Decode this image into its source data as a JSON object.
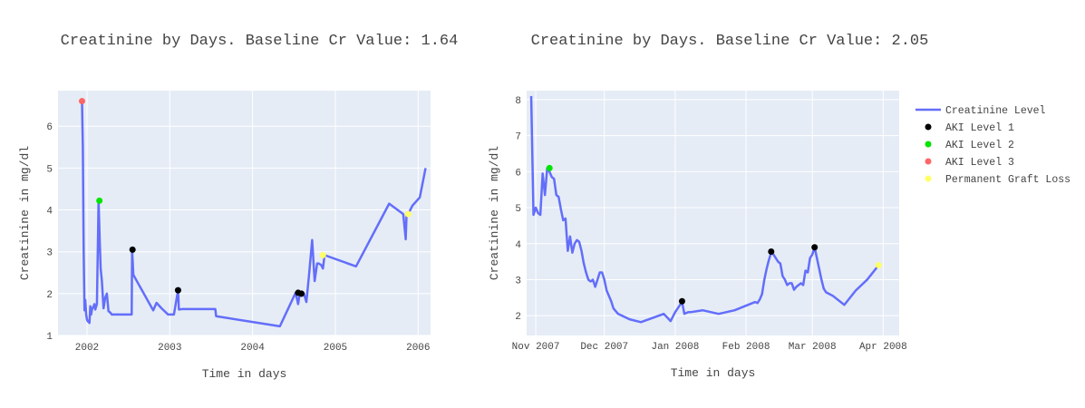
{
  "colors": {
    "plot_bg": "#E5ECF6",
    "grid": "#FFFFFF",
    "line": "#636EFA",
    "aki1": "#000000",
    "aki2": "#00E400",
    "aki3": "#FF6666",
    "loss": "#FFFF66"
  },
  "legend": {
    "position": "right",
    "entries": [
      {
        "label": "Creatinine Level",
        "kind": "line",
        "color": "#636EFA"
      },
      {
        "label": "AKI Level 1",
        "kind": "marker",
        "color": "#000000"
      },
      {
        "label": "AKI Level 2",
        "kind": "marker",
        "color": "#00E400"
      },
      {
        "label": "AKI Level 3",
        "kind": "marker",
        "color": "#FF6666"
      },
      {
        "label": "Permanent Graft Loss",
        "kind": "marker",
        "color": "#FFFF66"
      }
    ]
  },
  "chart_data": [
    {
      "type": "line",
      "title": "Creatinine by Days. Baseline Cr Value: 1.64",
      "xlabel": "Time in days",
      "ylabel": "Creatinine in mg/dl",
      "grid": true,
      "xlim": [
        2001.65,
        2006.15
      ],
      "ylim": [
        1.0,
        6.85
      ],
      "xticks": [
        2002,
        2003,
        2004,
        2005,
        2006
      ],
      "xticklabels": [
        "2002",
        "2003",
        "2004",
        "2005",
        "2006"
      ],
      "yticks": [
        1,
        2,
        3,
        4,
        5,
        6
      ],
      "yticklabels": [
        "1",
        "2",
        "3",
        "4",
        "5",
        "6"
      ],
      "series": [
        {
          "name": "Creatinine Level",
          "x": [
            1.94,
            1.95,
            1.96,
            1.97,
            1.98,
            1.99,
            2.0,
            2.01,
            2.03,
            2.04,
            2.05,
            2.06,
            2.08,
            2.09,
            2.1,
            2.12,
            2.14,
            2.155,
            2.165,
            2.18,
            2.2,
            2.22,
            2.24,
            2.26,
            2.28,
            2.3,
            2.5,
            2.54,
            2.545,
            2.56,
            2.8,
            2.84,
            2.9,
            2.98,
            3.05,
            3.1,
            3.11,
            3.15,
            3.55,
            3.56,
            4.33,
            4.52,
            4.55,
            4.57,
            4.59,
            4.62,
            4.65,
            4.68,
            4.72,
            4.75,
            4.78,
            4.8,
            4.83,
            4.85,
            4.87,
            5.25,
            5.65,
            5.82,
            5.85,
            5.86,
            5.88,
            5.93,
            6.02,
            6.09
          ],
          "y": [
            6.6,
            5.5,
            3.0,
            1.6,
            1.85,
            1.5,
            1.38,
            1.34,
            1.3,
            1.7,
            1.5,
            1.62,
            1.7,
            1.75,
            1.62,
            1.75,
            4.22,
            3.2,
            2.6,
            2.3,
            1.65,
            1.9,
            2.0,
            1.58,
            1.55,
            1.5,
            1.5,
            1.5,
            3.05,
            2.45,
            1.6,
            1.78,
            1.65,
            1.5,
            1.5,
            2.08,
            1.62,
            1.63,
            1.63,
            1.46,
            1.22,
            2.02,
            1.75,
            2.0,
            1.95,
            2.0,
            1.8,
            2.4,
            3.28,
            2.3,
            2.72,
            2.72,
            2.68,
            2.6,
            2.92,
            2.65,
            4.15,
            3.9,
            3.3,
            3.88,
            3.9,
            4.1,
            4.3,
            5.0
          ]
        }
      ],
      "markers": [
        {
          "x": 1.94,
          "y": 6.6,
          "level": "AKI Level 3"
        },
        {
          "x": 2.15,
          "y": 4.22,
          "level": "AKI Level 2"
        },
        {
          "x": 2.55,
          "y": 3.05,
          "level": "AKI Level 1"
        },
        {
          "x": 3.1,
          "y": 2.08,
          "level": "AKI Level 1"
        },
        {
          "x": 4.55,
          "y": 2.02,
          "level": "AKI Level 1"
        },
        {
          "x": 4.59,
          "y": 2.0,
          "level": "AKI Level 1"
        },
        {
          "x": 4.85,
          "y": 2.92,
          "level": "Permanent Graft Loss"
        },
        {
          "x": 5.88,
          "y": 3.9,
          "level": "Permanent Graft Loss"
        }
      ]
    },
    {
      "type": "line",
      "title": "Creatinine by Days. Baseline Cr Value: 2.05",
      "xlabel": "Time in days",
      "ylabel": "Creatinine in mg/dl",
      "grid": true,
      "xlim": [
        "2007-10-28",
        "2008-04-08"
      ],
      "ylim": [
        1.45,
        8.25
      ],
      "xticks": [
        "2007-11-01",
        "2007-12-01",
        "2008-01-01",
        "2008-02-01",
        "2008-03-01",
        "2008-04-01"
      ],
      "xticklabels": [
        "Nov 2007",
        "Dec 2007",
        "Jan 2008",
        "Feb 2008",
        "Mar 2008",
        "Apr 2008"
      ],
      "yticks": [
        2,
        3,
        4,
        5,
        6,
        7,
        8
      ],
      "yticklabels": [
        "2",
        "3",
        "4",
        "5",
        "6",
        "7",
        "8"
      ],
      "series": [
        {
          "name": "Creatinine Level",
          "x": [
            "2007-10-30",
            "2007-10-31",
            "2007-11-01",
            "2007-11-02",
            "2007-11-03",
            "2007-11-04",
            "2007-11-05",
            "2007-11-06",
            "2007-11-07",
            "2007-11-08",
            "2007-11-09",
            "2007-11-10",
            "2007-11-11",
            "2007-11-12",
            "2007-11-13",
            "2007-11-14",
            "2007-11-15",
            "2007-11-16",
            "2007-11-17",
            "2007-11-18",
            "2007-11-19",
            "2007-11-20",
            "2007-11-21",
            "2007-11-22",
            "2007-11-23",
            "2007-11-24",
            "2007-11-25",
            "2007-11-26",
            "2007-11-27",
            "2007-11-28",
            "2007-11-29",
            "2007-11-30",
            "2007-12-01",
            "2007-12-02",
            "2007-12-03",
            "2007-12-04",
            "2007-12-05",
            "2007-12-07",
            "2007-12-12",
            "2007-12-17",
            "2007-12-27",
            "2007-12-30",
            "2008-01-01",
            "2008-01-04",
            "2008-01-05",
            "2008-01-06",
            "2008-01-07",
            "2008-01-08",
            "2008-01-13",
            "2008-01-20",
            "2008-01-27",
            "2008-02-05",
            "2008-02-06",
            "2008-02-07",
            "2008-02-08",
            "2008-02-09",
            "2008-02-10",
            "2008-02-11",
            "2008-02-12",
            "2008-02-13",
            "2008-02-14",
            "2008-02-15",
            "2008-02-16",
            "2008-02-17",
            "2008-02-18",
            "2008-02-19",
            "2008-02-20",
            "2008-02-21",
            "2008-02-22",
            "2008-02-23",
            "2008-02-24",
            "2008-02-25",
            "2008-02-26",
            "2008-02-27",
            "2008-02-28",
            "2008-02-29",
            "2008-03-01",
            "2008-03-02",
            "2008-03-03",
            "2008-03-04",
            "2008-03-05",
            "2008-03-06",
            "2008-03-07",
            "2008-03-10",
            "2008-03-15",
            "2008-03-20",
            "2008-03-25",
            "2008-03-30"
          ],
          "y": [
            8.1,
            4.8,
            5.0,
            4.85,
            4.8,
            5.95,
            5.35,
            6.1,
            6.0,
            5.85,
            5.8,
            5.35,
            5.3,
            4.95,
            4.65,
            4.7,
            3.8,
            4.2,
            3.75,
            4.0,
            4.1,
            4.05,
            3.8,
            3.45,
            3.2,
            3.0,
            2.95,
            3.0,
            2.8,
            3.0,
            3.2,
            3.2,
            3.0,
            2.7,
            2.55,
            2.4,
            2.2,
            2.05,
            1.9,
            1.82,
            2.05,
            1.85,
            2.1,
            2.38,
            2.05,
            2.08,
            2.1,
            2.1,
            2.15,
            2.05,
            2.15,
            2.38,
            2.35,
            2.45,
            2.6,
            3.0,
            3.3,
            3.55,
            3.75,
            3.7,
            3.6,
            3.5,
            3.45,
            3.1,
            3.0,
            2.85,
            2.9,
            2.9,
            2.72,
            2.8,
            2.85,
            2.9,
            2.85,
            3.25,
            3.2,
            3.6,
            3.7,
            3.9,
            3.6,
            3.3,
            3.0,
            2.75,
            2.65,
            2.55,
            2.3,
            2.7,
            3.0,
            3.4
          ]
        }
      ],
      "markers": [
        {
          "x": "2007-11-07",
          "y": 6.1,
          "level": "AKI Level 2"
        },
        {
          "x": "2008-01-04",
          "y": 2.4,
          "level": "AKI Level 1"
        },
        {
          "x": "2008-02-12",
          "y": 3.78,
          "level": "AKI Level 1"
        },
        {
          "x": "2008-03-02",
          "y": 3.9,
          "level": "AKI Level 1"
        },
        {
          "x": "2008-03-30",
          "y": 3.4,
          "level": "Permanent Graft Loss"
        }
      ]
    }
  ]
}
